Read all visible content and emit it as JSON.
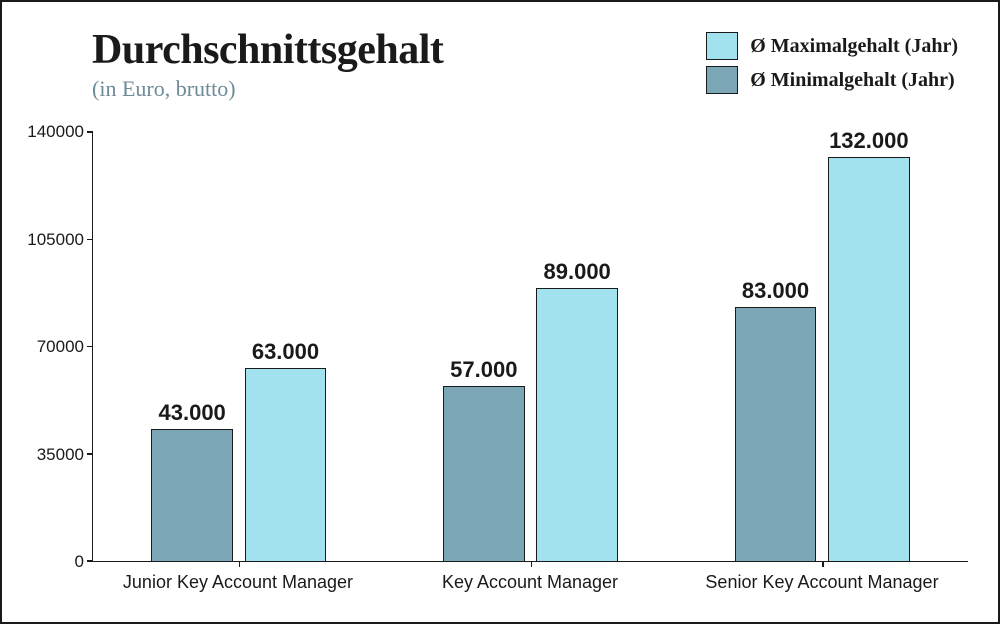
{
  "title": "Durchschnittsgehalt",
  "subtitle": "(in Euro, brutto)",
  "chart": {
    "type": "bar",
    "background_color": "#ffffff",
    "border_color": "#1a1a1a",
    "ylim": [
      0,
      140000
    ],
    "ytick_step": 35000,
    "yticks": [
      0,
      35000,
      70000,
      105000,
      140000
    ],
    "ytick_labels": [
      "0",
      "35000",
      "70000",
      "105000",
      "140000"
    ],
    "categories": [
      "Junior Key Account Manager",
      "Key Account Manager",
      "Senior Key Account Manager"
    ],
    "series": [
      {
        "name": "Ø Minimalgehalt (Jahr)",
        "color": "#7ba6b5",
        "values": [
          43000,
          57000,
          83000
        ],
        "value_labels": [
          "43.000",
          "57.000",
          "83.000"
        ]
      },
      {
        "name": "Ø Maximalgehalt (Jahr)",
        "color": "#a1e2ee",
        "values": [
          63000,
          89000,
          132000
        ],
        "value_labels": [
          "63.000",
          "89.000",
          "132.000"
        ]
      }
    ],
    "legend_order": [
      "Ø Maximalgehalt (Jahr)",
      "Ø Minimalgehalt (Jahr)"
    ],
    "bar_width_pct": 28,
    "bar_gap_pct": 4,
    "title_fontsize": 42,
    "subtitle_fontsize": 22,
    "label_fontsize": 18,
    "value_label_fontsize": 22,
    "ytick_fontsize": 17,
    "legend_fontsize": 20
  }
}
